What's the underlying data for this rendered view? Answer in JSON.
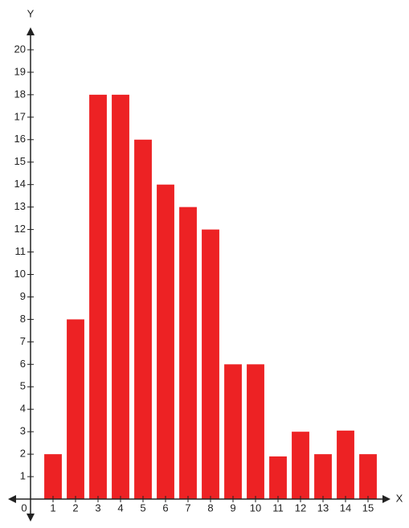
{
  "chart_data": {
    "type": "bar",
    "x": [
      1,
      2,
      3,
      4,
      5,
      6,
      7,
      8,
      9,
      10,
      11,
      12,
      13,
      14,
      15
    ],
    "values": [
      2,
      8,
      18,
      18,
      16,
      14,
      13,
      12,
      6,
      6,
      1.9,
      3,
      2,
      3.05,
      2
    ],
    "color": "#ed2224",
    "xlim": [
      -1,
      16
    ],
    "ylim": [
      -1,
      21
    ],
    "xticks": [
      0,
      1,
      2,
      3,
      4,
      5,
      6,
      7,
      8,
      9,
      10,
      11,
      12,
      13,
      14,
      15
    ],
    "yticks": [
      1,
      2,
      3,
      4,
      5,
      6,
      7,
      8,
      9,
      10,
      11,
      12,
      13,
      14,
      15,
      16,
      17,
      18,
      19,
      20
    ],
    "xlabel": "X",
    "ylabel": "Y"
  }
}
